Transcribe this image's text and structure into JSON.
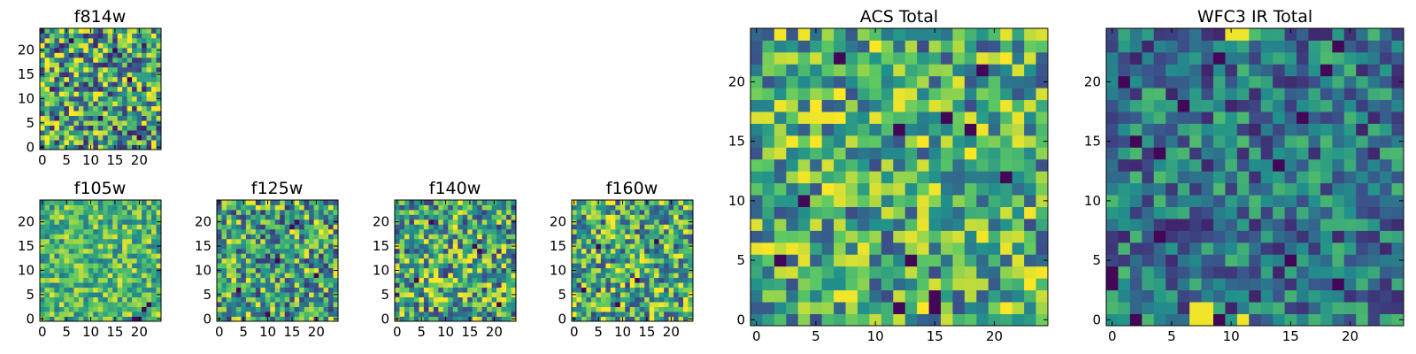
{
  "colors": {
    "viridis": [
      "#440154",
      "#3b528b",
      "#21918c",
      "#5ec962",
      "#fde725"
    ]
  },
  "chart_data": [
    {
      "type": "heatmap",
      "title": "f814w",
      "grid_size": 25,
      "xticks": [
        0,
        5,
        10,
        15,
        20
      ],
      "yticks": [
        0,
        5,
        10,
        15,
        20
      ],
      "xlim": [
        0,
        24
      ],
      "ylim": [
        0,
        24
      ],
      "colormap": "viridis",
      "value_range": [
        0,
        1
      ],
      "seed": 1,
      "texture": 0.75,
      "base": 0.58,
      "dark_cells": [
        [
          20,
          2
        ],
        [
          12,
          6
        ],
        [
          18,
          14
        ],
        [
          6,
          22
        ],
        [
          15,
          20
        ]
      ]
    },
    {
      "type": "heatmap",
      "title": "f105w",
      "grid_size": 25,
      "xticks": [
        0,
        5,
        10,
        15,
        20
      ],
      "yticks": [
        0,
        5,
        10,
        15,
        20
      ],
      "xlim": [
        0,
        24
      ],
      "ylim": [
        0,
        24
      ],
      "colormap": "viridis",
      "value_range": [
        0,
        1
      ],
      "seed": 2,
      "texture": 0.45,
      "base": 0.68,
      "dark_cells": [
        [
          19,
          0
        ],
        [
          20,
          0
        ],
        [
          21,
          2
        ],
        [
          22,
          3
        ]
      ]
    },
    {
      "type": "heatmap",
      "title": "f125w",
      "grid_size": 25,
      "xticks": [
        0,
        5,
        10,
        15,
        20
      ],
      "yticks": [
        0,
        5,
        10,
        15,
        20
      ],
      "xlim": [
        0,
        24
      ],
      "ylim": [
        0,
        24
      ],
      "colormap": "viridis",
      "value_range": [
        0,
        1
      ],
      "seed": 3,
      "texture": 0.65,
      "base": 0.58,
      "dark_cells": [
        [
          15,
          19
        ],
        [
          16,
          20
        ],
        [
          12,
          12
        ],
        [
          20,
          9
        ],
        [
          10,
          1
        ],
        [
          4,
          6
        ]
      ]
    },
    {
      "type": "heatmap",
      "title": "f140w",
      "grid_size": 25,
      "xticks": [
        0,
        5,
        10,
        15,
        20
      ],
      "yticks": [
        0,
        5,
        10,
        15,
        20
      ],
      "xlim": [
        0,
        24
      ],
      "ylim": [
        0,
        24
      ],
      "colormap": "viridis",
      "value_range": [
        0,
        1
      ],
      "seed": 4,
      "texture": 0.65,
      "base": 0.6,
      "dark_cells": [
        [
          7,
          20
        ],
        [
          16,
          15
        ],
        [
          17,
          14
        ],
        [
          4,
          8
        ],
        [
          21,
          3
        ]
      ]
    },
    {
      "type": "heatmap",
      "title": "f160w",
      "grid_size": 25,
      "xticks": [
        0,
        5,
        10,
        15,
        20
      ],
      "yticks": [
        0,
        5,
        10,
        15,
        20
      ],
      "xlim": [
        0,
        24
      ],
      "ylim": [
        0,
        24
      ],
      "colormap": "viridis",
      "value_range": [
        0,
        1
      ],
      "seed": 5,
      "texture": 0.65,
      "base": 0.62,
      "dark_cells": [
        [
          5,
          15
        ],
        [
          17,
          16
        ],
        [
          2,
          6
        ],
        [
          9,
          3
        ],
        [
          13,
          8
        ]
      ]
    },
    {
      "type": "heatmap",
      "title": "ACS Total",
      "grid_size": 25,
      "xticks": [
        0,
        5,
        10,
        15,
        20
      ],
      "yticks": [
        0,
        5,
        10,
        15,
        20
      ],
      "xlim": [
        0,
        24
      ],
      "ylim": [
        0,
        24
      ],
      "colormap": "viridis",
      "value_range": [
        0,
        1
      ],
      "seed": 6,
      "texture": 0.6,
      "base": 0.62,
      "dark_cells": [
        [
          7,
          22
        ],
        [
          19,
          21
        ],
        [
          12,
          16
        ],
        [
          16,
          17
        ],
        [
          18,
          16
        ],
        [
          4,
          10
        ],
        [
          13,
          5
        ],
        [
          2,
          5
        ],
        [
          15,
          2
        ],
        [
          21,
          12
        ],
        [
          12,
          1
        ],
        [
          15,
          1
        ]
      ]
    },
    {
      "type": "heatmap",
      "title": "WFC3 IR Total",
      "grid_size": 25,
      "xticks": [
        0,
        5,
        10,
        15,
        20
      ],
      "yticks": [
        0,
        5,
        10,
        15,
        20
      ],
      "xlim": [
        0,
        24
      ],
      "ylim": [
        0,
        24
      ],
      "colormap": "viridis",
      "value_range": [
        0,
        1
      ],
      "seed": 7,
      "texture": 0.45,
      "base": 0.4,
      "dark_cells": [
        [
          9,
          22
        ],
        [
          19,
          23
        ],
        [
          18,
          21
        ],
        [
          6,
          18
        ],
        [
          16,
          17
        ],
        [
          4,
          14
        ],
        [
          1,
          20
        ],
        [
          2,
          15
        ],
        [
          14,
          13
        ],
        [
          4,
          7
        ],
        [
          15,
          5
        ],
        [
          19,
          3
        ],
        [
          0,
          3
        ],
        [
          0,
          4
        ],
        [
          2,
          0
        ],
        [
          9,
          0
        ]
      ],
      "bright_cells": [
        [
          7,
          1
        ],
        [
          8,
          1
        ],
        [
          7,
          0
        ],
        [
          8,
          0
        ],
        [
          11,
          0
        ],
        [
          10,
          24
        ],
        [
          11,
          24
        ]
      ]
    }
  ]
}
